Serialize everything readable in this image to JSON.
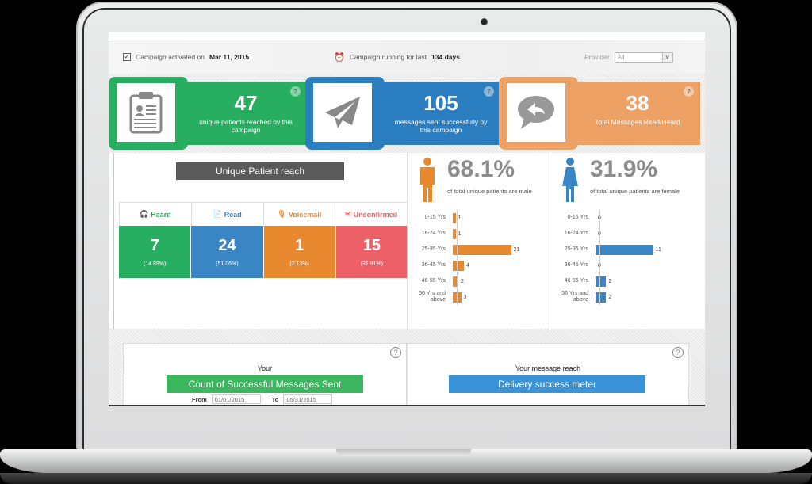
{
  "header": {
    "activated_prefix": "Campaign activated on",
    "activated_date": "Mar 11, 2015",
    "running_prefix": "Campaign running for last",
    "running_days": "134 days",
    "provider_label": "Provider",
    "provider_value": "All"
  },
  "kpis": [
    {
      "value": "47",
      "desc": "unique patients reached by this campaign",
      "icon": "clipboard-icon",
      "color": "#27ae60",
      "help": "?"
    },
    {
      "value": "105",
      "desc": "messages sent successfully by this campaign",
      "icon": "paper-plane-icon",
      "color": "#2b7fc1",
      "help": "?"
    },
    {
      "value": "38",
      "desc": "Total Messages Read/Heard",
      "icon": "reply-bubble-icon",
      "color": "#eea165",
      "help": "?"
    }
  ],
  "reach": {
    "title": "Unique Patient reach",
    "statuses": [
      {
        "label": "Heard",
        "count": "7",
        "pct": "(14.89%)",
        "color": "#27ae60",
        "icon": "headset-user-icon"
      },
      {
        "label": "Read",
        "count": "24",
        "pct": "(51.06%)",
        "color": "#3a86c4",
        "icon": "document-icon"
      },
      {
        "label": "Voicemail",
        "count": "1",
        "pct": "(2.13%)",
        "color": "#e8892f",
        "icon": "microphone-icon"
      },
      {
        "label": "Unconfirmed",
        "count": "15",
        "pct": "(31.91%)",
        "color": "#ee6067",
        "icon": "unconfirmed-message-icon"
      }
    ]
  },
  "gender": {
    "male": {
      "pct": "68.1%",
      "label": "of total unique patients are male",
      "color": "#e8892f",
      "ages": [
        {
          "label": "0-15 Yrs",
          "value": 1
        },
        {
          "label": "16-24 Yrs",
          "value": 1
        },
        {
          "label": "25-35 Yrs",
          "value": 21
        },
        {
          "label": "36-45 Yrs",
          "value": 4
        },
        {
          "label": "46-55 Yrs",
          "value": 2
        },
        {
          "label": "56 Yrs and above",
          "value": 3
        }
      ]
    },
    "female": {
      "pct": "31.9%",
      "label": "of total unique patients are female",
      "color": "#3a86c4",
      "ages": [
        {
          "label": "0-15 Yrs",
          "value": 0
        },
        {
          "label": "16-24 Yrs",
          "value": 0
        },
        {
          "label": "25-35 Yrs",
          "value": 11
        },
        {
          "label": "36-45 Yrs",
          "value": 0
        },
        {
          "label": "46-55 Yrs",
          "value": 2
        },
        {
          "label": "56 Yrs and above",
          "value": 2
        }
      ]
    }
  },
  "bottom": {
    "left": {
      "pre": "Your",
      "title": "Count of Successful Messages Sent",
      "from_label": "From",
      "from_value": "01/01/2015",
      "to_label": "To",
      "to_value": "05/31/2015",
      "help": "?"
    },
    "right": {
      "pre": "Your message reach",
      "title": "Delivery success meter",
      "help": "?"
    }
  }
}
